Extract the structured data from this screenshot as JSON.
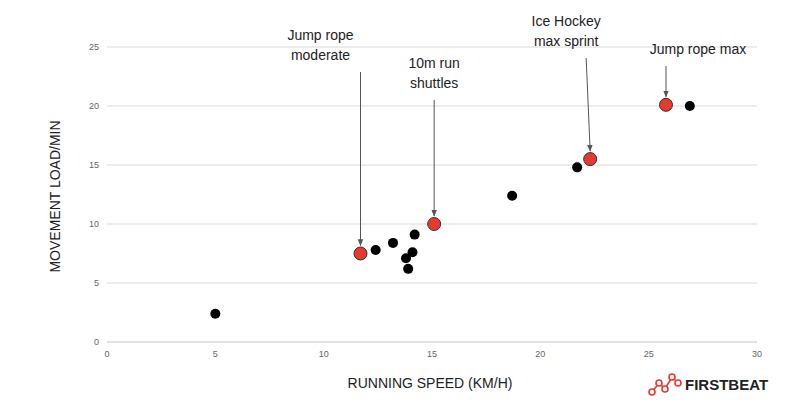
{
  "chart_data": {
    "type": "scatter",
    "x_label": "RUNNING SPEED (KM/H)",
    "y_label": "MOVEMENT LOAD/MIN",
    "xlim": [
      0,
      30
    ],
    "xticks": [
      0,
      5,
      10,
      15,
      20,
      25,
      30
    ],
    "ylim": [
      0,
      25
    ],
    "yticks": [
      0,
      5,
      10,
      15,
      20,
      25
    ],
    "grid": true,
    "logo": "FIRSTBEAT",
    "series": [
      {
        "color": "#000000",
        "marker": "circle",
        "x": [
          5.0,
          12.4,
          13.2,
          14.2,
          14.1,
          13.8,
          13.9,
          18.7,
          21.7,
          26.9
        ],
        "values": [
          2.4,
          7.8,
          8.4,
          9.1,
          7.6,
          7.1,
          6.2,
          12.4,
          14.8,
          20.0
        ]
      },
      {
        "color": "#e8392e",
        "marker": "circle",
        "x": [
          11.7,
          15.1,
          22.3,
          25.8
        ],
        "values": [
          7.5,
          10.0,
          15.5,
          20.1
        ],
        "labels": [
          "Jump rope\nmoderate",
          "10m run\nshuttles",
          "Ice Hockey\nmax sprint",
          "Jump rope max"
        ]
      }
    ]
  }
}
